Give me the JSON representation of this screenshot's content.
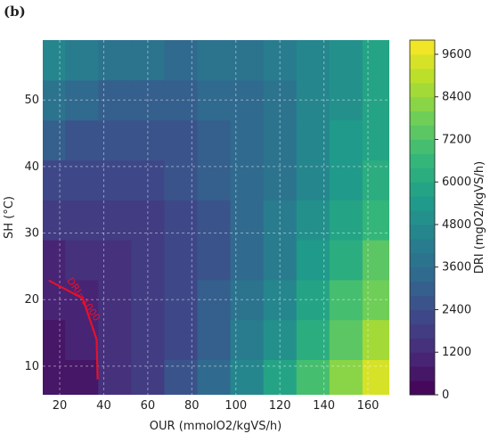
{
  "chart_data": {
    "type": "contour",
    "panel_label": "(b)",
    "x_label": "OUR (mmolO2/kgVS/h)",
    "y_label": "SH (°C)",
    "colorbar_label": "DRI (mgO2/kgVS/h)",
    "x": [
      15,
      30,
      45,
      60,
      75,
      90,
      105,
      120,
      135,
      150,
      165
    ],
    "y": [
      8,
      14,
      20,
      26,
      32,
      38,
      44,
      50,
      56
    ],
    "z": [
      [
        415,
        768,
        1250,
        1864,
        2608,
        3484,
        4490,
        5625,
        6893,
        8290,
        9591
      ],
      [
        568,
        826,
        1211,
        1726,
        2369,
        3141,
        4042,
        5071,
        6229,
        7516,
        8732
      ],
      [
        826,
        988,
        1276,
        1692,
        2233,
        2903,
        3699,
        4620,
        5670,
        6845,
        7978
      ],
      [
        1188,
        1254,
        1445,
        1761,
        2202,
        2768,
        3459,
        4273,
        5214,
        6279,
        7327
      ],
      [
        1652,
        1623,
        1717,
        1934,
        2273,
        2737,
        3322,
        4030,
        4862,
        5816,
        6779
      ],
      [
        2222,
        2098,
        2094,
        2212,
        2450,
        2810,
        3290,
        3891,
        4614,
        5457,
        6336
      ],
      [
        2894,
        2674,
        2573,
        2592,
        2728,
        2985,
        3361,
        3854,
        4468,
        5201,
        5996
      ],
      [
        3670,
        3355,
        3157,
        3076,
        3112,
        3266,
        3536,
        3923,
        4428,
        5049,
        5760
      ],
      [
        4550,
        4139,
        3844,
        3664,
        3598,
        3649,
        3814,
        4094,
        4490,
        5001,
        5627
      ]
    ],
    "xlim": [
      12.3,
      169.7
    ],
    "ylim": [
      5.7,
      59
    ],
    "xticks": [
      20,
      40,
      60,
      80,
      100,
      120,
      140,
      160
    ],
    "yticks": [
      10,
      20,
      30,
      40,
      50
    ],
    "clim": [
      0,
      10000
    ],
    "level_step": 400,
    "cticks": [
      0,
      1200,
      2400,
      3600,
      4800,
      6000,
      7200,
      8400,
      9600
    ],
    "colormap": [
      "#440154",
      "#482878",
      "#3e4989",
      "#31688e",
      "#26828e",
      "#1f9e89",
      "#35b779",
      "#6ece58",
      "#b5de2b",
      "#fde725"
    ],
    "grid": true,
    "contour": {
      "level": 1000,
      "label": "DRI=1000",
      "color": "#e8102a"
    }
  }
}
